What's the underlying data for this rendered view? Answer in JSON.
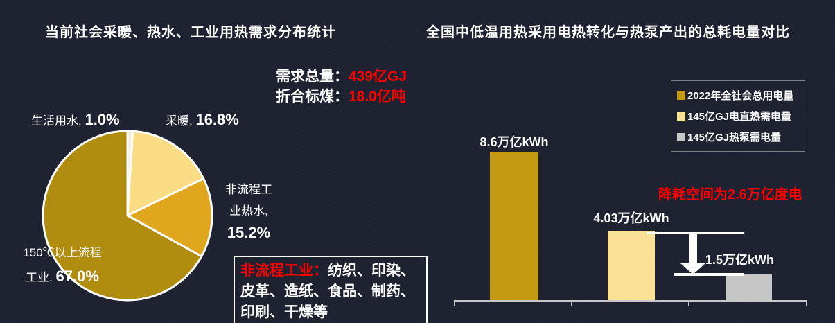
{
  "page": {
    "background": "#1e2130",
    "accent_red": "#ff0000"
  },
  "left_panel": {
    "title": "当前社会采暖、热水、工业用热需求分布统计",
    "stats": {
      "line1_label": "需求总量：",
      "line1_value": "439亿GJ",
      "line2_label": "折合标煤：",
      "line2_value": "18.0亿吨"
    },
    "pie_labels": {
      "domestic_water": {
        "name": "生活用水,",
        "value": "1.0%"
      },
      "heating": {
        "name": "采暖,",
        "value": "16.8%"
      },
      "non_process": {
        "line1": "非流程工",
        "line2": "业热水,",
        "value": "15.2%"
      },
      "process_150": {
        "line1": "150℃以上流程",
        "line2": "工业,",
        "value": "67.0%"
      }
    },
    "note_box": {
      "highlight": "非流程工业：",
      "text": "纺织、印染、皮革、造纸、食品、制药、印刷、干燥等"
    }
  },
  "right_panel": {
    "title": "全国中低温用热采用电热转化与热泵产出的总耗电量对比",
    "legend": [
      {
        "label": "2022年全社会总用电量",
        "color": "#c49a12"
      },
      {
        "label": "145亿GJ电直热需电量",
        "color": "#fae195"
      },
      {
        "label": "145亿GJ热泵需电量",
        "color": "#c6c6c6"
      }
    ],
    "annotation": "降耗空间为2.6万亿度电",
    "bar_labels": [
      "8.6万亿kWh",
      "4.03万亿kWh",
      "1.5万亿kWh"
    ]
  },
  "chart_data": [
    {
      "type": "pie",
      "title": "当前社会采暖、热水、工业用热需求分布统计",
      "unit": "%",
      "start_angle_deg": -90,
      "direction": "clockwise",
      "slices": [
        {
          "label": "生活用水",
          "value": 1.0,
          "color": "#f2ecd9"
        },
        {
          "label": "采暖",
          "value": 16.8,
          "color": "#fadc84"
        },
        {
          "label": "非流程工业热水",
          "value": 15.2,
          "color": "#dfa61e"
        },
        {
          "label": "150℃以上流程工业",
          "value": 67.0,
          "color": "#b08c0f"
        }
      ],
      "totals": {
        "需求总量": "439亿GJ",
        "折合标煤": "18.0亿吨"
      }
    },
    {
      "type": "bar",
      "title": "全国中低温用热采用电热转化与热泵产出的总耗电量对比",
      "categories": [
        "2022年全社会总用电量",
        "145亿GJ电直热需电量",
        "145亿GJ热泵需电量"
      ],
      "values": [
        8.6,
        4.03,
        1.5
      ],
      "colors": [
        "#c49a12",
        "#fae195",
        "#c6c6c6"
      ],
      "unit": "万亿kWh",
      "ylim": [
        0,
        9.2
      ],
      "grid": false,
      "legend_position": "top-right",
      "annotation": "降耗空间为2.6万亿度电"
    }
  ]
}
